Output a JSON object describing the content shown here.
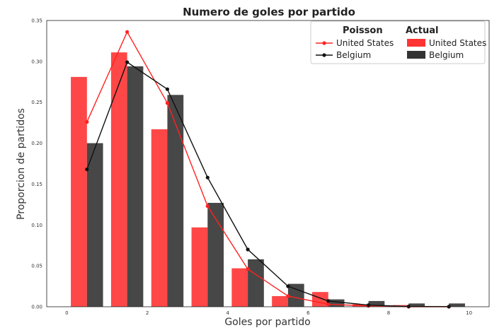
{
  "chart_data": {
    "type": "bar",
    "title": "Numero de goles por partido",
    "xlabel": "Goles por partido",
    "ylabel": "Proporcion de partidos",
    "xlim": [
      -0.5,
      10.5
    ],
    "ylim": [
      0,
      0.35
    ],
    "xticks": [
      "0",
      "2",
      "4",
      "6",
      "8",
      "10"
    ],
    "yticks": [
      "0.00",
      "0.05",
      "0.10",
      "0.15",
      "0.20",
      "0.25",
      "0.30",
      "0.35"
    ],
    "grid": false,
    "legend": {
      "placement": "top-right",
      "poisson_header": "Poisson",
      "actual_header": "Actual",
      "poisson_entries": [
        "United States",
        "Belgium"
      ],
      "actual_entries": [
        "United States",
        "Belgium"
      ]
    },
    "bars": [
      {
        "name": "United States",
        "color": "#ff3333",
        "x": [
          0,
          1,
          2,
          3,
          4,
          5,
          6,
          7,
          8,
          9
        ],
        "values": [
          0.281,
          0.311,
          0.217,
          0.097,
          0.047,
          0.013,
          0.018,
          0.003,
          0.002,
          0.0
        ]
      },
      {
        "name": "Belgium",
        "color": "#333333",
        "x": [
          0,
          1,
          2,
          3,
          4,
          5,
          6,
          7,
          8,
          9
        ],
        "values": [
          0.2,
          0.294,
          0.259,
          0.127,
          0.058,
          0.028,
          0.009,
          0.007,
          0.004,
          0.004
        ]
      }
    ],
    "lines": [
      {
        "name": "United States",
        "color": "#ff2222",
        "x": [
          0.5,
          1.5,
          2.5,
          3.5,
          4.5,
          5.5,
          6.5,
          7.5,
          8.5,
          9.5
        ],
        "values": [
          0.226,
          0.336,
          0.249,
          0.123,
          0.046,
          0.013,
          0.003,
          0.001,
          0.0,
          0.0
        ]
      },
      {
        "name": "Belgium",
        "color": "#111111",
        "x": [
          0.5,
          1.5,
          2.5,
          3.5,
          4.5,
          5.5,
          6.5,
          7.5,
          8.5,
          9.5
        ],
        "values": [
          0.168,
          0.299,
          0.266,
          0.158,
          0.07,
          0.025,
          0.007,
          0.002,
          0.0004,
          0.0001
        ]
      }
    ]
  }
}
